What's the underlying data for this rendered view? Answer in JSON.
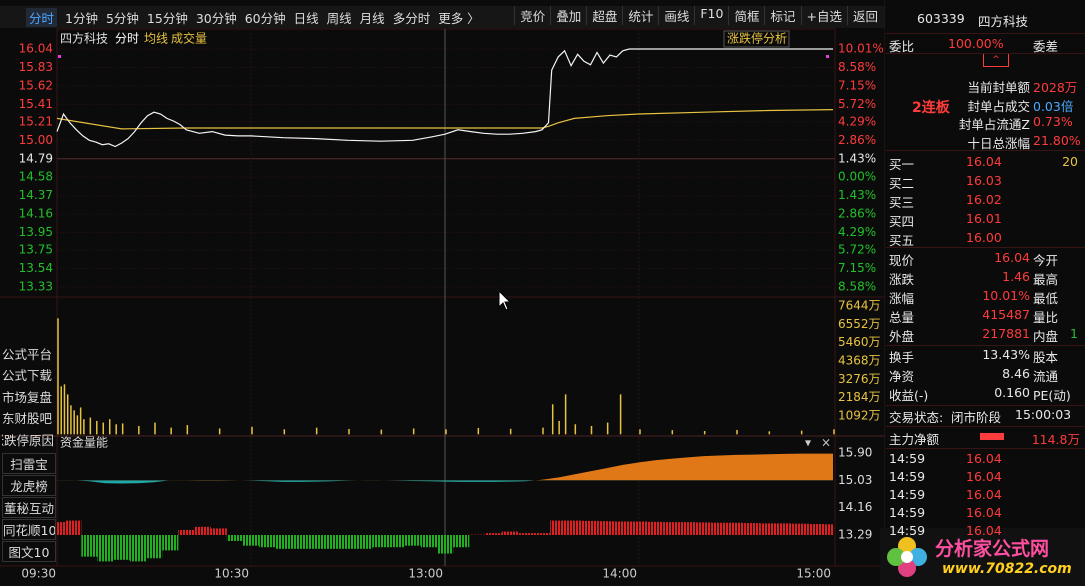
{
  "toolbar": {
    "left": [
      "分时",
      "1分钟",
      "5分钟",
      "15分钟",
      "30分钟",
      "60分钟",
      "日线",
      "周线",
      "月线",
      "多分时",
      "更多 〉"
    ],
    "right": [
      "竞价",
      "叠加",
      "超盘",
      "统计",
      "画线",
      "F10",
      "简框",
      "标记",
      "+自选",
      "返回"
    ]
  },
  "sidebar": [
    "公式平台",
    "公式下载",
    "市场复盘",
    "东财股吧",
    "涨跌停原因",
    "扫雷宝",
    "龙虎榜",
    "董秘互动",
    "同花顺10",
    "图文10"
  ],
  "chart": {
    "stock": "四方科技",
    "mode": "分时",
    "avg_label": "均线",
    "vol_label": "成交量",
    "analysis": "涨跌停分析",
    "price_ticks": [
      16.04,
      15.83,
      15.62,
      15.41,
      15.21,
      {
        "value": 15,
        "label": "15.00"
      },
      14.79,
      14.58,
      14.37,
      14.16,
      13.95,
      13.75,
      13.54,
      13.33
    ],
    "pct_labels": [
      "10.01%",
      "8.58%",
      "7.15%",
      "5.72%",
      "4.29%",
      "2.86%",
      "1.43%",
      "0.00%",
      "1.43%",
      "2.86%",
      "4.29%",
      "5.72%",
      "7.15%",
      "8.58%"
    ],
    "price_line": {
      "minutes": [
        0,
        2,
        4,
        6,
        8,
        10,
        12,
        14,
        16,
        18,
        20,
        22,
        24,
        26,
        28,
        30,
        32,
        34,
        36,
        38,
        40,
        44,
        48,
        52,
        56,
        60,
        70,
        80,
        90,
        100,
        110,
        116,
        120,
        124,
        128,
        132,
        136,
        140,
        144,
        148,
        150,
        152,
        153,
        155,
        157,
        159,
        161,
        163,
        165,
        167,
        169,
        171,
        173,
        175,
        177,
        240
      ],
      "values": [
        15.1,
        15.3,
        15.2,
        15.12,
        15.05,
        15.0,
        14.98,
        14.95,
        14.96,
        14.93,
        14.97,
        15.02,
        15.1,
        15.2,
        15.28,
        15.32,
        15.3,
        15.25,
        15.22,
        15.18,
        15.12,
        15.08,
        15.1,
        15.06,
        15.05,
        15.05,
        15.03,
        15.02,
        15.0,
        14.99,
        15.0,
        15.04,
        15.07,
        15.12,
        15.1,
        15.08,
        15.07,
        15.07,
        15.08,
        15.1,
        15.12,
        15.2,
        15.8,
        15.95,
        16.02,
        15.85,
        15.98,
        15.9,
        15.86,
        16.0,
        15.88,
        15.97,
        15.95,
        16.02,
        16.04,
        16.04
      ]
    },
    "avg_line": {
      "minutes": [
        0,
        20,
        40,
        60,
        90,
        120,
        150,
        152,
        155,
        160,
        170,
        180,
        200,
        220,
        240
      ],
      "values": [
        15.25,
        15.13,
        15.14,
        15.14,
        15.14,
        15.14,
        15.14,
        15.16,
        15.2,
        15.25,
        15.28,
        15.3,
        15.32,
        15.34,
        15.35
      ]
    },
    "volume_ticks": [
      {
        "value": 7644,
        "label": "7644万"
      },
      {
        "value": 6552,
        "label": "6552万"
      },
      {
        "value": 5460,
        "label": "5460万"
      },
      {
        "value": 4368,
        "label": "4368万"
      },
      {
        "value": 3276,
        "label": "3276万"
      },
      {
        "value": 2184,
        "label": "2184万"
      },
      {
        "value": 1092,
        "label": "1092万"
      }
    ],
    "volume": {
      "minutes": [
        0,
        1,
        2,
        3,
        4,
        5,
        6,
        7,
        8,
        10,
        12,
        14,
        16,
        18,
        20,
        25,
        30,
        35,
        40,
        50,
        60,
        70,
        80,
        90,
        100,
        110,
        120,
        130,
        140,
        150,
        153,
        155,
        157,
        160,
        165,
        170,
        174,
        180,
        190,
        200,
        210,
        220,
        230,
        240
      ],
      "values": [
        6910,
        2860,
        2980,
        2380,
        1730,
        1430,
        1130,
        1600,
        900,
        1000,
        800,
        700,
        900,
        600,
        650,
        500,
        700,
        400,
        550,
        350,
        450,
        300,
        400,
        320,
        280,
        350,
        300,
        380,
        330,
        400,
        1790,
        800,
        2380,
        600,
        500,
        700,
        2380,
        300,
        250,
        200,
        260,
        180,
        220,
        300
      ]
    },
    "fund_title": "资金量能",
    "fund_ticks": [
      {
        "value": 15.9,
        "label": "15.90"
      },
      15.03,
      14.16,
      13.29
    ],
    "fund_minutes": [
      0,
      5,
      10,
      15,
      20,
      25,
      30,
      35,
      40,
      45,
      50,
      55,
      60,
      65,
      70,
      75,
      80,
      85,
      90,
      95,
      100,
      105,
      110,
      115,
      120,
      125,
      130,
      135,
      140,
      145,
      150,
      155,
      160,
      165,
      170,
      175,
      180,
      185,
      190,
      195,
      200,
      205,
      210,
      215,
      220,
      225,
      230,
      235,
      240
    ],
    "fund_main": [
      15.03,
      15.03,
      15.0,
      14.94,
      14.93,
      14.94,
      14.97,
      15.03,
      15.03,
      15.04,
      15.04,
      15.03,
      15.02,
      15.0,
      14.98,
      14.98,
      14.99,
      15.0,
      15.02,
      15.03,
      15.03,
      15.02,
      15.01,
      15.0,
      14.99,
      14.98,
      14.98,
      14.98,
      14.99,
      15.0,
      15.05,
      15.12,
      15.22,
      15.32,
      15.42,
      15.52,
      15.6,
      15.67,
      15.72,
      15.76,
      15.8,
      15.82,
      15.84,
      15.85,
      15.86,
      15.87,
      15.88,
      15.88,
      15.88
    ],
    "fund_bars": [
      13.7,
      13.75,
      12.6,
      12.45,
      12.5,
      12.45,
      12.55,
      12.8,
      13.45,
      13.55,
      13.5,
      13.1,
      12.95,
      12.9,
      12.85,
      12.85,
      12.85,
      12.85,
      12.85,
      12.85,
      12.9,
      12.9,
      12.95,
      12.9,
      12.7,
      12.9,
      13.3,
      13.35,
      13.4,
      13.35,
      13.35,
      13.75,
      13.75,
      13.74,
      13.73,
      13.72,
      13.72,
      13.71,
      13.7,
      13.7,
      13.69,
      13.68,
      13.68,
      13.67,
      13.66,
      13.66,
      13.65,
      13.64,
      13.63
    ],
    "time_ticks": [
      {
        "value": 0,
        "label": "09:30"
      },
      {
        "value": 60,
        "label": "10:30"
      },
      {
        "value": 120,
        "label": "13:00"
      },
      {
        "value": 180,
        "label": "14:00"
      },
      {
        "value": 240,
        "label": "15:00"
      }
    ]
  },
  "right_panel": {
    "code": "603339",
    "name": "四方科技",
    "weibi": [
      "委比",
      "100.00%",
      "委差"
    ],
    "streak": "2连板",
    "seal": [
      [
        "当前封单额",
        "2028万"
      ],
      [
        "封单占成交",
        "0.03倍"
      ],
      [
        "封单占流通Z",
        "0.73%"
      ],
      [
        "十日总涨幅",
        "21.80%"
      ]
    ],
    "bids": [
      [
        "买一",
        "16.04",
        "20"
      ],
      [
        "买二",
        "16.03"
      ],
      [
        "买三",
        "16.02"
      ],
      [
        "买四",
        "16.01"
      ],
      [
        "买五",
        "16.00"
      ]
    ],
    "quote": [
      [
        "现价",
        "16.04",
        "今开"
      ],
      [
        "涨跌",
        "1.46",
        "最高"
      ],
      [
        "涨幅",
        "10.01%",
        "最低"
      ],
      [
        "总量",
        "415487",
        "量比"
      ],
      [
        "外盘",
        "217881",
        "内盘",
        "1"
      ]
    ],
    "stats": [
      [
        "换手",
        "13.43%",
        "股本"
      ],
      [
        "净资",
        "8.46",
        "流通"
      ],
      [
        "收益(-)",
        "0.160",
        "PE(动)"
      ]
    ],
    "status": [
      "交易状态:",
      "闭市阶段",
      "15:00:03"
    ],
    "flow": [
      "主力净额",
      "114.8万"
    ],
    "ticks": [
      [
        "14:59",
        "16.04"
      ],
      [
        "14:59",
        "16.04"
      ],
      [
        "14:59",
        "16.04"
      ],
      [
        "14:59",
        "16.04"
      ],
      [
        "14:59",
        "16.04"
      ]
    ]
  },
  "watermark": {
    "name": "分析家公式网",
    "url": "www.70822.com"
  }
}
